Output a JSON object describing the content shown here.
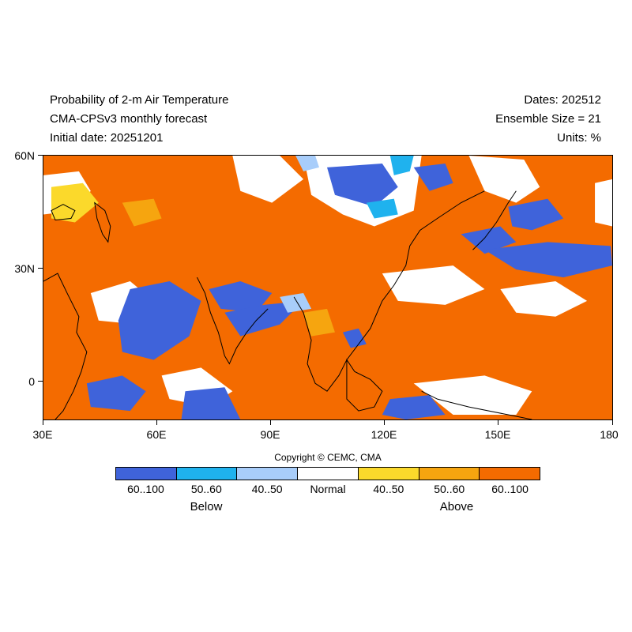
{
  "header": {
    "title_line1": "Probability of 2-m Air Temperature",
    "title_line2": "CMA-CPSv3 monthly forecast",
    "title_line3": "Initial date: 20251201",
    "dates": "Dates: 202512",
    "ensemble": "Ensemble Size = 21",
    "units": "Units: %"
  },
  "map": {
    "lat_labels": [
      "60N",
      "30N",
      "0"
    ],
    "lon_labels": [
      "30E",
      "60E",
      "90E",
      "120E",
      "150E",
      "180"
    ],
    "extent": {
      "lon_min": 30,
      "lon_max": 180,
      "lat_min": -10,
      "lat_max": 60
    },
    "colors": {
      "below_60_100": "#3f63da",
      "below_50_60": "#1fb2ee",
      "below_40_50": "#a8cdfa",
      "normal": "#ffffff",
      "above_40_50": "#fbd92b",
      "above_50_60": "#f6a50f",
      "above_60_100": "#f46b00",
      "coastline": "#000000"
    }
  },
  "legend": {
    "items": [
      {
        "label": "60..100",
        "color": "#3f63da"
      },
      {
        "label": "50..60",
        "color": "#1fb2ee"
      },
      {
        "label": "40..50",
        "color": "#a8cdfa"
      },
      {
        "label": "Normal",
        "color": "#ffffff"
      },
      {
        "label": "40..50",
        "color": "#fbd92b"
      },
      {
        "label": "50..60",
        "color": "#f6a50f"
      },
      {
        "label": "60..100",
        "color": "#f46b00"
      }
    ],
    "below_label": "Below",
    "above_label": "Above"
  },
  "copyright": "Copyright © CEMC, CMA"
}
